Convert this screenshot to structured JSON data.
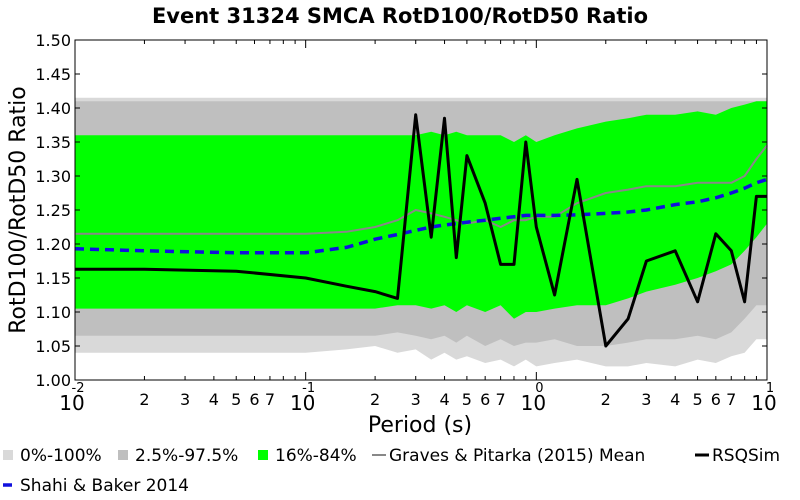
{
  "chart_data": {
    "type": "area",
    "title": "Event 31324 SMCA RotD100/RotD50 Ratio",
    "xlabel": "Period (s)",
    "ylabel": "RotD100/RotD50 Ratio",
    "xscale": "log",
    "xlim": [
      0.01,
      10
    ],
    "ylim": [
      1.0,
      1.5
    ],
    "grid": false,
    "legend_placement": "bottom",
    "y_ticks": [
      "1.00",
      "1.05",
      "1.10",
      "1.15",
      "1.20",
      "1.25",
      "1.30",
      "1.35",
      "1.40",
      "1.45",
      "1.50"
    ],
    "x_major_ticks": [
      {
        "base": "10",
        "exp": "-2"
      },
      {
        "base": "10",
        "exp": "-1"
      },
      {
        "base": "10",
        "exp": "0"
      },
      {
        "base": "10",
        "exp": "1"
      }
    ],
    "x_minor_labels": [
      "2",
      "3",
      "4",
      "5",
      "6",
      "7"
    ],
    "x": [
      0.01,
      0.02,
      0.05,
      0.1,
      0.15,
      0.2,
      0.25,
      0.3,
      0.35,
      0.4,
      0.45,
      0.5,
      0.6,
      0.7,
      0.8,
      0.9,
      1.0,
      1.2,
      1.5,
      2.0,
      2.5,
      3.0,
      4.0,
      5.0,
      6.0,
      7.0,
      8.0,
      9.0,
      10.0
    ],
    "series": [
      {
        "name": "0%-100%",
        "kind": "band",
        "color": "#d9d9d9",
        "lower": [
          1.04,
          1.04,
          1.04,
          1.04,
          1.045,
          1.05,
          1.04,
          1.045,
          1.03,
          1.04,
          1.03,
          1.035,
          1.025,
          1.03,
          1.02,
          1.03,
          1.02,
          1.025,
          1.03,
          1.02,
          1.02,
          1.025,
          1.02,
          1.03,
          1.025,
          1.035,
          1.04,
          1.06,
          1.06
        ],
        "upper": [
          1.415,
          1.415,
          1.415,
          1.415,
          1.415,
          1.415,
          1.415,
          1.415,
          1.415,
          1.415,
          1.415,
          1.415,
          1.415,
          1.415,
          1.415,
          1.415,
          1.415,
          1.415,
          1.415,
          1.415,
          1.415,
          1.415,
          1.415,
          1.415,
          1.415,
          1.415,
          1.415,
          1.415,
          1.415
        ]
      },
      {
        "name": "2.5%-97.5%",
        "kind": "band",
        "color": "#bfbfbf",
        "lower": [
          1.065,
          1.065,
          1.065,
          1.065,
          1.065,
          1.065,
          1.07,
          1.065,
          1.06,
          1.065,
          1.055,
          1.065,
          1.05,
          1.06,
          1.05,
          1.055,
          1.055,
          1.06,
          1.05,
          1.05,
          1.055,
          1.06,
          1.06,
          1.065,
          1.06,
          1.07,
          1.09,
          1.11,
          1.11
        ],
        "upper": [
          1.41,
          1.41,
          1.41,
          1.41,
          1.41,
          1.41,
          1.41,
          1.41,
          1.41,
          1.41,
          1.41,
          1.41,
          1.41,
          1.41,
          1.41,
          1.41,
          1.41,
          1.41,
          1.41,
          1.41,
          1.41,
          1.41,
          1.41,
          1.41,
          1.41,
          1.41,
          1.41,
          1.41,
          1.41
        ]
      },
      {
        "name": "16%-84%",
        "kind": "band",
        "color": "#00ff00",
        "lower": [
          1.105,
          1.105,
          1.105,
          1.105,
          1.105,
          1.105,
          1.11,
          1.11,
          1.105,
          1.11,
          1.1,
          1.11,
          1.1,
          1.11,
          1.09,
          1.1,
          1.1,
          1.105,
          1.11,
          1.11,
          1.12,
          1.13,
          1.14,
          1.15,
          1.16,
          1.17,
          1.19,
          1.21,
          1.23
        ],
        "upper": [
          1.36,
          1.36,
          1.36,
          1.36,
          1.36,
          1.36,
          1.36,
          1.36,
          1.365,
          1.36,
          1.365,
          1.36,
          1.36,
          1.36,
          1.35,
          1.36,
          1.35,
          1.36,
          1.37,
          1.38,
          1.385,
          1.39,
          1.39,
          1.395,
          1.39,
          1.4,
          1.405,
          1.41,
          1.41
        ]
      },
      {
        "name": "Graves & Pitarka (2015) Mean",
        "kind": "line",
        "color": "#888888",
        "width": 2,
        "values": [
          1.215,
          1.215,
          1.215,
          1.215,
          1.218,
          1.225,
          1.235,
          1.25,
          1.245,
          1.24,
          1.235,
          1.23,
          1.235,
          1.225,
          1.235,
          1.235,
          1.24,
          1.24,
          1.26,
          1.275,
          1.28,
          1.285,
          1.285,
          1.29,
          1.29,
          1.29,
          1.3,
          1.325,
          1.345
        ]
      },
      {
        "name": "Shahi & Baker 2014",
        "kind": "dashed",
        "color": "#1010dd",
        "width": 3.5,
        "values": [
          1.193,
          1.19,
          1.187,
          1.187,
          1.195,
          1.207,
          1.214,
          1.22,
          1.225,
          1.228,
          1.23,
          1.232,
          1.235,
          1.238,
          1.24,
          1.242,
          1.242,
          1.242,
          1.243,
          1.245,
          1.247,
          1.25,
          1.258,
          1.262,
          1.268,
          1.275,
          1.282,
          1.29,
          1.295
        ]
      },
      {
        "name": "RSQSim",
        "kind": "line",
        "color": "#000000",
        "width": 3,
        "values": [
          1.163,
          1.163,
          1.16,
          1.15,
          1.138,
          1.13,
          1.12,
          1.39,
          1.21,
          1.385,
          1.18,
          1.33,
          1.26,
          1.17,
          1.17,
          1.35,
          1.225,
          1.125,
          1.295,
          1.05,
          1.09,
          1.175,
          1.19,
          1.115,
          1.215,
          1.19,
          1.115,
          1.27,
          1.27
        ]
      }
    ]
  }
}
